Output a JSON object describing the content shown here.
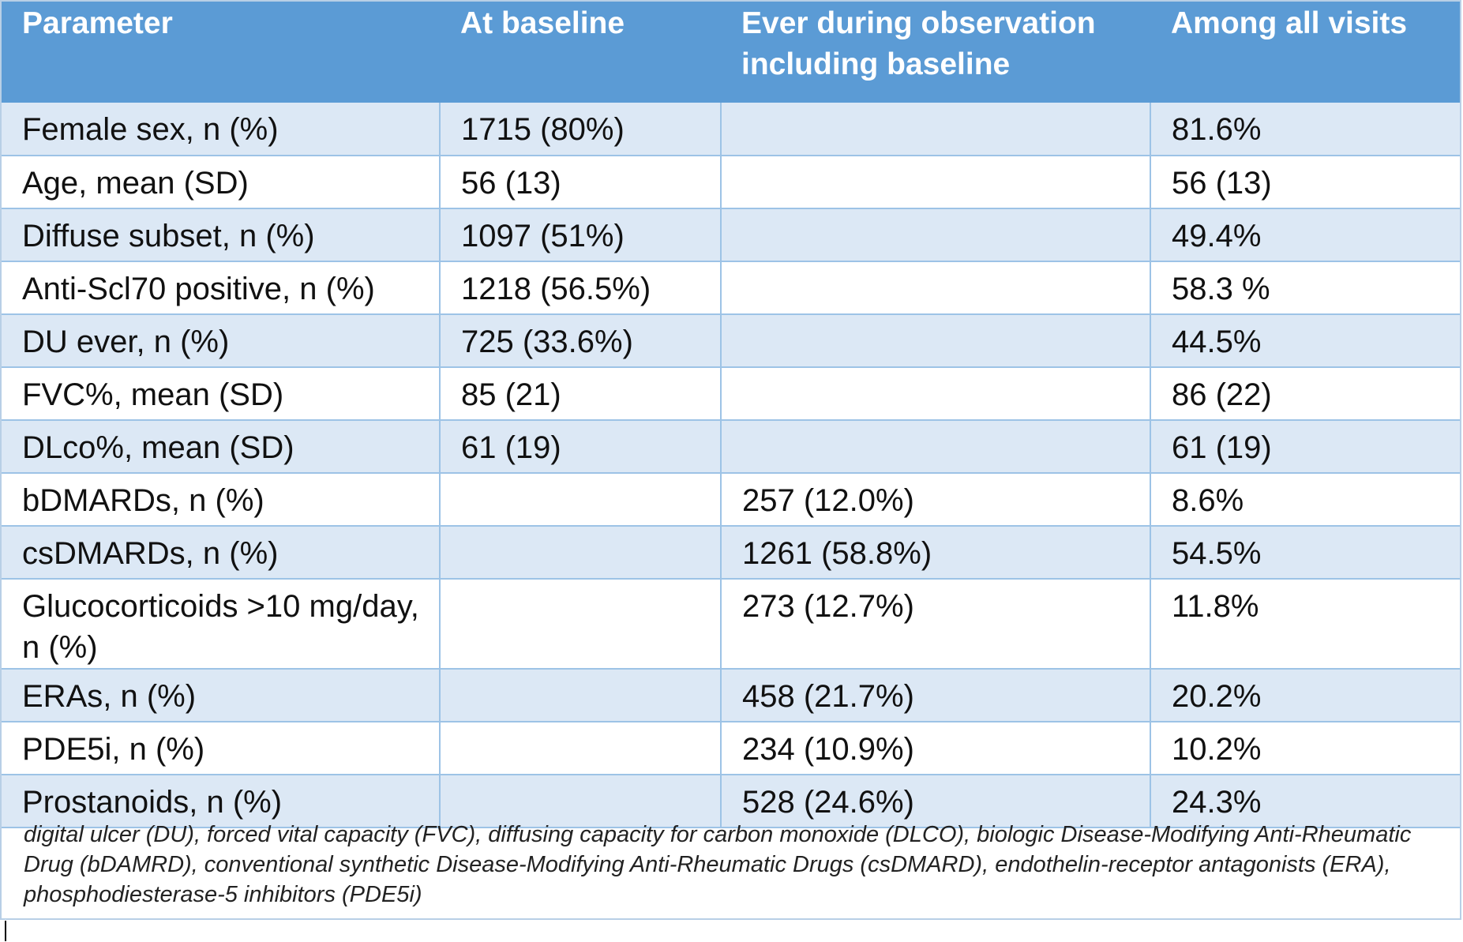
{
  "table": {
    "headers": [
      "Parameter",
      "At baseline",
      "Ever during observation including baseline",
      "Among all visits"
    ],
    "rows": [
      [
        "Female sex, n (%)",
        "1715 (80%)",
        "",
        "81.6%"
      ],
      [
        "Age, mean (SD)",
        "56 (13)",
        "",
        "56 (13)"
      ],
      [
        "Diffuse subset, n (%)",
        "1097 (51%)",
        "",
        "49.4%"
      ],
      [
        "Anti-Scl70 positive, n (%)",
        "1218 (56.5%)",
        "",
        "58.3 %"
      ],
      [
        "DU ever, n (%)",
        "725 (33.6%)",
        "",
        "44.5%"
      ],
      [
        "FVC%, mean (SD)",
        "85 (21)",
        "",
        "86 (22)"
      ],
      [
        "DLco%, mean (SD)",
        "61 (19)",
        "",
        "61 (19)"
      ],
      [
        "bDMARDs, n (%)",
        "",
        "257 (12.0%)",
        "8.6%"
      ],
      [
        "csDMARDs, n (%)",
        "",
        "1261 (58.8%)",
        "54.5%"
      ],
      [
        "Glucocorticoids >10 mg/day, n (%)",
        "",
        "273 (12.7%)",
        "11.8%"
      ],
      [
        "ERAs, n (%)",
        "",
        "458 (21.7%)",
        "20.2%"
      ],
      [
        "PDE5i, n (%)",
        "",
        "234 (10.9%)",
        "10.2%"
      ],
      [
        "Prostanoids, n (%)",
        "",
        "528 (24.6%)",
        "24.3%"
      ]
    ],
    "footnote": "digital ulcer (DU),  forced vital capacity (FVC), diffusing capacity for carbon monoxide (DLCO), biologic Disease-Modifying Anti-Rheumatic Drug (bDAMRD), conventional synthetic Disease-Modifying Anti-Rheumatic Drugs (csDMARD), endothelin-receptor antagonists (ERA), phosphodiesterase-5 inhibitors (PDE5i)"
  },
  "colors": {
    "header_bg": "#5b9bd5",
    "header_text": "#ffffff",
    "band_row_bg": "#dce8f5",
    "grid_line": "#9dc3e6"
  }
}
